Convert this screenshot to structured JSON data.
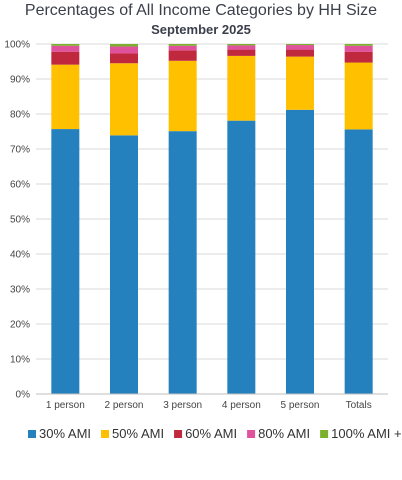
{
  "chart_data": {
    "type": "bar",
    "stacked": true,
    "title": "Percentages of All Income Categories by HH Size",
    "subtitle": "September 2025",
    "categories": [
      "1 person",
      "2 person",
      "3 person",
      "4 person",
      "5 person",
      "Totals"
    ],
    "ylim": [
      0,
      100
    ],
    "yticks": [
      "0%",
      "10%",
      "20%",
      "30%",
      "40%",
      "50%",
      "60%",
      "70%",
      "80%",
      "90%",
      "100%"
    ],
    "grid": true,
    "legend_position": "bottom",
    "series": [
      {
        "name": "30% AMI",
        "color": "#2581be",
        "values": [
          75.7,
          73.9,
          75.1,
          78.1,
          81.2,
          75.6
        ]
      },
      {
        "name": "50% AMI",
        "color": "#ffc000",
        "values": [
          18.4,
          20.6,
          20.1,
          18.5,
          15.2,
          19.1
        ]
      },
      {
        "name": "60% AMI",
        "color": "#c0283e",
        "values": [
          3.7,
          2.8,
          3.0,
          1.8,
          2.0,
          3.1
        ]
      },
      {
        "name": "80% AMI",
        "color": "#e0529c",
        "values": [
          1.7,
          2.0,
          1.3,
          1.2,
          1.3,
          1.7
        ]
      },
      {
        "name": "100% AMI +",
        "color": "#7ab02b",
        "values": [
          0.5,
          0.7,
          0.5,
          0.4,
          0.3,
          0.5
        ]
      }
    ]
  }
}
